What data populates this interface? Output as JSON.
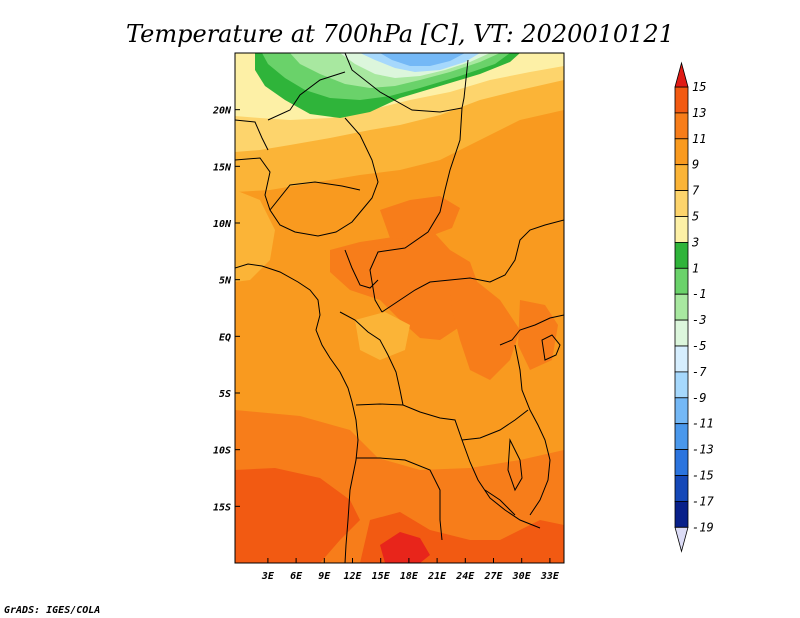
{
  "chart_data": {
    "type": "heatmap",
    "title": "Temperature at 700hPa [C], VT: 2020010121",
    "variable": "Temperature",
    "level": "700hPa",
    "units": "C",
    "valid_time": "2020010121",
    "xlim": [
      -0.5,
      34.5
    ],
    "ylim": [
      -20,
      25
    ],
    "x_ticks": [
      3,
      6,
      9,
      12,
      15,
      18,
      21,
      24,
      27,
      30,
      33
    ],
    "x_tick_labels": [
      "3E",
      "6E",
      "9E",
      "12E",
      "15E",
      "18E",
      "21E",
      "24E",
      "27E",
      "30E",
      "33E"
    ],
    "y_ticks": [
      20,
      15,
      10,
      5,
      0,
      -5,
      -10,
      -15
    ],
    "y_tick_labels": [
      "20N",
      "15N",
      "10N",
      "5N",
      "EQ",
      "5S",
      "10S",
      "15S"
    ],
    "colorbar": {
      "levels": [
        15,
        13,
        11,
        9,
        7,
        5,
        3,
        1,
        -1,
        -3,
        -5,
        -7,
        -9,
        -11,
        -13,
        -15,
        -17,
        -19
      ],
      "labels": [
        "15",
        "13",
        "11",
        "9",
        "7",
        "5",
        "3",
        "1",
        "-1",
        "-3",
        "-5",
        "-7",
        "-9",
        "-11",
        "-13",
        "-15",
        "-17",
        "-19"
      ],
      "colors": [
        "#e8251b",
        "#f25a12",
        "#f77d1a",
        "#f99a1f",
        "#fbb437",
        "#fdd46c",
        "#fdf0a6",
        "#2fb43a",
        "#6ad26a",
        "#a8e8a0",
        "#dcf6dc",
        "#d6eefe",
        "#a6d8fc",
        "#74b8f6",
        "#4a98ec",
        "#2b74de",
        "#1548b8",
        "#08208a",
        "#060a5a"
      ],
      "top_arrow_color": "#e01b15",
      "bottom_arrow_color": "#dcdcf6"
    },
    "credit": "GrADS: IGES/COLA"
  }
}
